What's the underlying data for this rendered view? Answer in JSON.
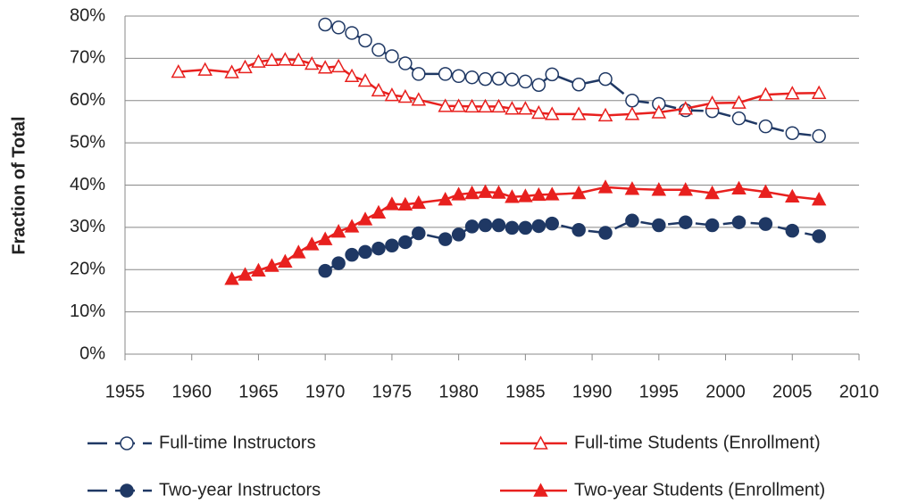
{
  "chart_data": {
    "type": "line",
    "y_label": "Fraction of Total",
    "xlim": [
      1955,
      2010
    ],
    "xticks": [
      1955,
      1960,
      1965,
      1970,
      1975,
      1980,
      1985,
      1990,
      1995,
      2000,
      2005,
      2010
    ],
    "ylim": [
      0,
      80
    ],
    "yticks": [
      {
        "value": 0,
        "label": "0%"
      },
      {
        "value": 10,
        "label": "10%"
      },
      {
        "value": 20,
        "label": "20%"
      },
      {
        "value": 30,
        "label": "30%"
      },
      {
        "value": 40,
        "label": "40%"
      },
      {
        "value": 50,
        "label": "50%"
      },
      {
        "value": 60,
        "label": "60%"
      },
      {
        "value": 70,
        "label": "70%"
      },
      {
        "value": 80,
        "label": "80%"
      }
    ],
    "grid": true,
    "legend": "bottom",
    "series": [
      {
        "name": "Full-time Instructors",
        "color": "#1f3864",
        "marker": "circle",
        "filled": false,
        "dashed": true,
        "x": [
          1970,
          1971,
          1972,
          1973,
          1974,
          1975,
          1976,
          1977,
          1979,
          1980,
          1981,
          1982,
          1983,
          1984,
          1985,
          1986,
          1987,
          1989,
          1991,
          1993,
          1995,
          1997,
          1999,
          2001,
          2003,
          2005,
          2007
        ],
        "values": [
          78,
          77.3,
          76,
          74.2,
          72,
          70.5,
          68.8,
          66.3,
          66.3,
          65.8,
          65.5,
          65.1,
          65.2,
          65,
          64.5,
          63.7,
          66.2,
          63.8,
          65.1,
          60,
          59.2,
          57.7,
          57.5,
          55.8,
          53.9,
          52.3,
          51.6
        ]
      },
      {
        "name": "Full-time Students (Enrollment)",
        "color": "#e8201e",
        "marker": "triangle",
        "filled": false,
        "dashed": false,
        "x": [
          1959,
          1961,
          1963,
          1964,
          1965,
          1966,
          1967,
          1968,
          1969,
          1970,
          1971,
          1972,
          1973,
          1974,
          1975,
          1976,
          1977,
          1979,
          1980,
          1981,
          1982,
          1983,
          1984,
          1985,
          1986,
          1987,
          1989,
          1991,
          1993,
          1995,
          1997,
          1999,
          2001,
          2003,
          2005,
          2007
        ],
        "values": [
          66.8,
          67.3,
          66.7,
          67.9,
          69.2,
          69.6,
          69.7,
          69.6,
          68.7,
          67.8,
          68.1,
          65.8,
          64.7,
          62.4,
          61.3,
          60.9,
          60.2,
          58.7,
          58.7,
          58.6,
          58.6,
          58.6,
          58.1,
          58.1,
          57.1,
          56.8,
          56.8,
          56.5,
          56.8,
          57.2,
          58.1,
          59.4,
          59.5,
          61.4,
          61.7,
          61.8
        ]
      },
      {
        "name": "Two-year Instructors",
        "color": "#1f3864",
        "marker": "circle",
        "filled": true,
        "dashed": true,
        "x": [
          1970,
          1971,
          1972,
          1973,
          1974,
          1975,
          1976,
          1977,
          1979,
          1980,
          1981,
          1982,
          1983,
          1984,
          1985,
          1986,
          1987,
          1989,
          1991,
          1993,
          1995,
          1997,
          1999,
          2001,
          2003,
          2005,
          2007
        ],
        "values": [
          19.7,
          21.5,
          23.5,
          24.2,
          25,
          25.7,
          26.5,
          28.6,
          27.2,
          28.3,
          30.2,
          30.5,
          30.5,
          29.9,
          29.9,
          30.3,
          30.9,
          29.4,
          28.7,
          31.6,
          30.5,
          31.2,
          30.5,
          31.2,
          30.8,
          29.2,
          27.9
        ]
      },
      {
        "name": "Two-year Students (Enrollment)",
        "color": "#e8201e",
        "marker": "triangle",
        "filled": true,
        "dashed": false,
        "x": [
          1963,
          1964,
          1965,
          1966,
          1967,
          1968,
          1969,
          1970,
          1971,
          1972,
          1973,
          1974,
          1975,
          1976,
          1977,
          1979,
          1980,
          1981,
          1982,
          1983,
          1984,
          1985,
          1986,
          1987,
          1989,
          1991,
          1993,
          1995,
          1997,
          1999,
          2001,
          2003,
          2005,
          2007
        ],
        "values": [
          17.8,
          18.8,
          19.8,
          20.9,
          21.9,
          24.1,
          26,
          27.2,
          29,
          30.2,
          31.9,
          33.5,
          35.5,
          35.4,
          35.8,
          36.6,
          37.8,
          38.1,
          38.4,
          38.2,
          37.2,
          37.4,
          37.7,
          37.8,
          38.1,
          39.5,
          39.1,
          38.9,
          38.9,
          38.1,
          39.2,
          38.4,
          37.3,
          36.6
        ]
      }
    ]
  }
}
